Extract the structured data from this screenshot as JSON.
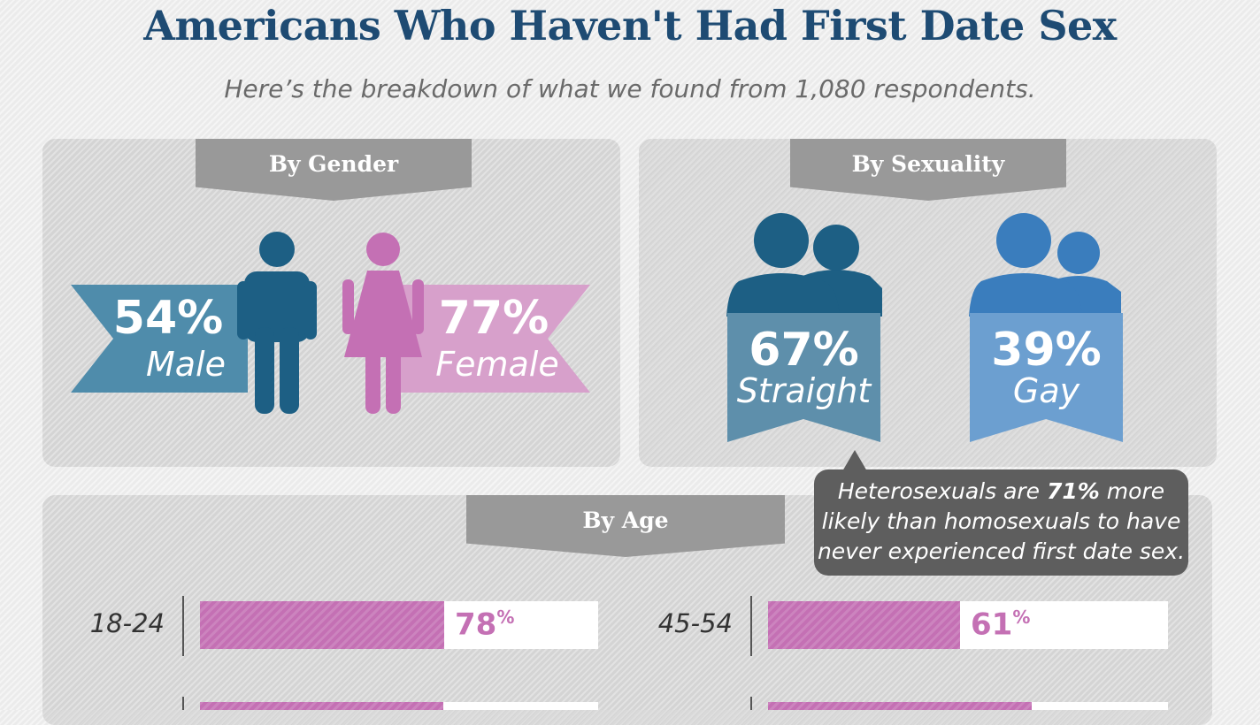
{
  "header": {
    "title": "Americans Who Haven't Had First Date Sex",
    "subtitle": "Here’s the breakdown of what we found from 1,080 respondents."
  },
  "colors": {
    "title": "#1e4b73",
    "male": "#1d5f84",
    "male_ribbon": "#4f8cab",
    "female": "#c470b4",
    "female_ribbon": "#d7a0cb",
    "straight": "#1d5f84",
    "straight_ribbon": "#5e8fab",
    "gay": "#3a7dbd",
    "gay_ribbon": "#6c9fd0",
    "callout": "#5e5e5e",
    "tab": "#999999"
  },
  "gender": {
    "tab": "By Gender",
    "male": {
      "pct": "54%",
      "label": "Male",
      "icon": "male-person-icon"
    },
    "female": {
      "pct": "77%",
      "label": "Female",
      "icon": "female-person-icon"
    }
  },
  "sexuality": {
    "tab": "By Sexuality",
    "straight": {
      "pct": "67%",
      "label": "Straight",
      "icon": "couple-straight-icon"
    },
    "gay": {
      "pct": "39%",
      "label": "Gay",
      "icon": "couple-gay-icon"
    }
  },
  "callout": {
    "text_before": "Heterosexuals are ",
    "highlight": "71%",
    "text_after": " more likely than homosexuals to have never experienced first date sex."
  },
  "age": {
    "tab": "By Age"
  },
  "chart_data": {
    "type": "bar",
    "title": "By Age",
    "categories": [
      "18-24",
      "45-54"
    ],
    "values": [
      78,
      61
    ],
    "value_labels": [
      "78",
      "61"
    ],
    "unit": "%",
    "ylim": [
      0,
      100
    ]
  }
}
